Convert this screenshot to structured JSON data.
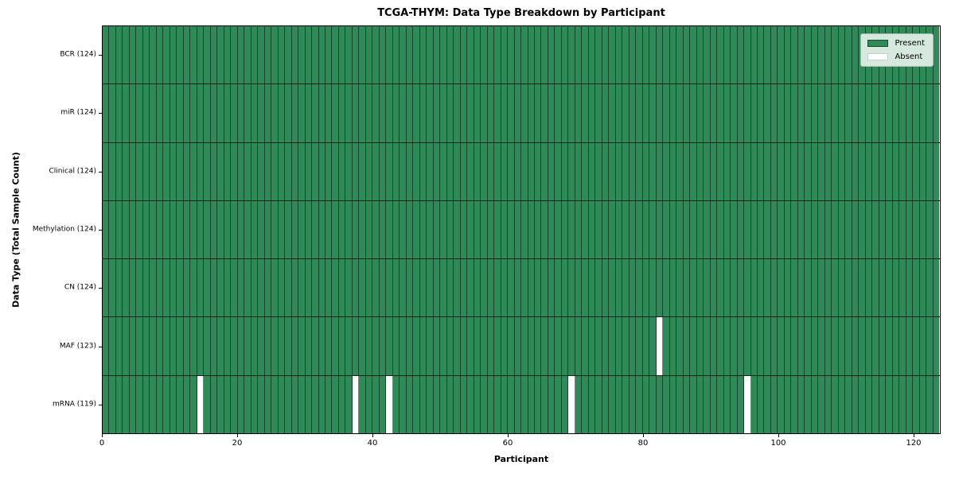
{
  "title": "TCGA-THYM: Data Type Breakdown by Participant",
  "xlabel": "Participant",
  "ylabel": "Data Type (Total Sample Count)",
  "legend": {
    "items": [
      {
        "label": "Present",
        "color": "#2e8b57"
      },
      {
        "label": "Absent",
        "color": "#ffffff"
      }
    ],
    "position": "upper right"
  },
  "chart_data": {
    "type": "heatmap",
    "title": "TCGA-THYM: Data Type Breakdown by Participant",
    "xlabel": "Participant",
    "ylabel": "Data Type (Total Sample Count)",
    "n_participants": 124,
    "xlim": [
      0,
      124
    ],
    "x_ticks": [
      0,
      20,
      40,
      60,
      80,
      100,
      120
    ],
    "grid": "vertical line per participant, horizontal line per row",
    "legend_position": "upper right",
    "rows": [
      {
        "label": "BCR (124)",
        "data_type": "BCR",
        "present_count": 124,
        "absent_participant_indices": []
      },
      {
        "label": "miR (124)",
        "data_type": "miR",
        "present_count": 124,
        "absent_participant_indices": []
      },
      {
        "label": "Clinical (124)",
        "data_type": "Clinical",
        "present_count": 124,
        "absent_participant_indices": []
      },
      {
        "label": "Methylation (124)",
        "data_type": "Methylation",
        "present_count": 124,
        "absent_participant_indices": []
      },
      {
        "label": "CN (124)",
        "data_type": "CN",
        "present_count": 124,
        "absent_participant_indices": []
      },
      {
        "label": "MAF (123)",
        "data_type": "MAF",
        "present_count": 123,
        "absent_participant_indices": [
          82
        ]
      },
      {
        "label": "mRNA (119)",
        "data_type": "mRNA",
        "present_count": 119,
        "absent_participant_indices": [
          14,
          37,
          42,
          69,
          95
        ]
      }
    ],
    "colors": {
      "present": "#2e8b57",
      "absent": "#ffffff",
      "cell_edge": "#1e4631",
      "row_divider": "#15241b",
      "axis": "#000000",
      "legend_bg": "#d7e8de"
    }
  }
}
